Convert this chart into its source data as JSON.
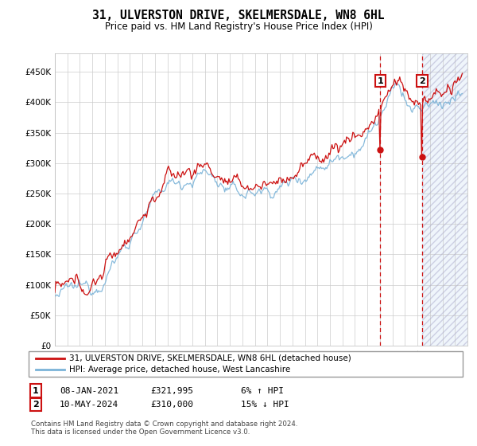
{
  "title": "31, ULVERSTON DRIVE, SKELMERSDALE, WN8 6HL",
  "subtitle": "Price paid vs. HM Land Registry's House Price Index (HPI)",
  "legend_line1": "31, ULVERSTON DRIVE, SKELMERSDALE, WN8 6HL (detached house)",
  "legend_line2": "HPI: Average price, detached house, West Lancashire",
  "annotation1_date": "08-JAN-2021",
  "annotation1_price": "£321,995",
  "annotation1_hpi": "6% ↑ HPI",
  "annotation2_date": "10-MAY-2024",
  "annotation2_price": "£310,000",
  "annotation2_hpi": "15% ↓ HPI",
  "footer": "Contains HM Land Registry data © Crown copyright and database right 2024.\nThis data is licensed under the Open Government Licence v3.0.",
  "hpi_color": "#7ab3d8",
  "price_color": "#cc1111",
  "annotation_color": "#cc1111",
  "background_color": "#ffffff",
  "grid_color": "#cccccc",
  "ylim": [
    0,
    480000
  ],
  "yticks": [
    0,
    50000,
    100000,
    150000,
    200000,
    250000,
    300000,
    350000,
    400000,
    450000
  ],
  "sale1_year": 2021.03,
  "sale1_price": 321995,
  "sale2_year": 2024.37,
  "sale2_price": 310000,
  "shade_start": 2024.37,
  "xmin": 1995,
  "xmax": 2028
}
